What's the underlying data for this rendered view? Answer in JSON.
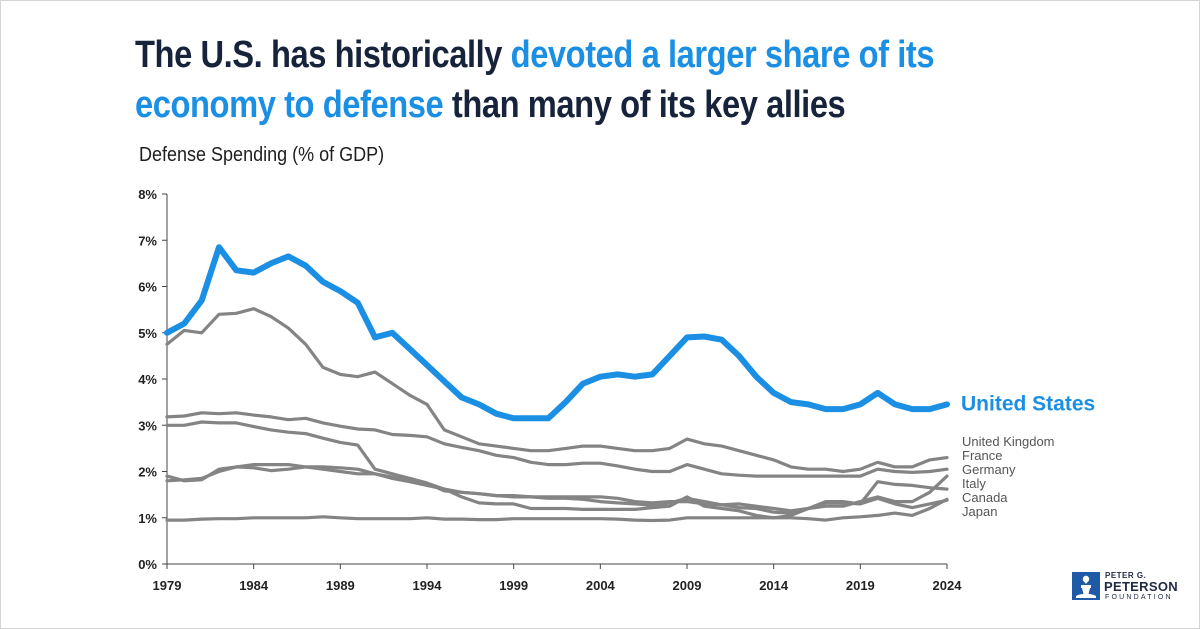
{
  "title": {
    "part1": "The U.S. has historically ",
    "part2": "devoted a larger share of its economy to defense",
    "part3": " than many of its key allies"
  },
  "colors": {
    "us": "#1a8fe3",
    "allies": "#848484",
    "axis": "#444444",
    "title": "#17233b"
  },
  "logo": {
    "line1": "PETER G.",
    "line2": "PETERSON",
    "line3": "FOUNDATION",
    "icon": "torch-icon"
  },
  "chart_data": {
    "type": "line",
    "subtitle": "Defense Spending (% of GDP)",
    "xlabel": "",
    "ylabel": "",
    "x_range": [
      1979,
      2024
    ],
    "ylim": [
      0,
      8
    ],
    "x_ticks": [
      "1979",
      "1984",
      "1989",
      "1994",
      "1999",
      "2004",
      "2009",
      "2014",
      "2019",
      "2024"
    ],
    "y_ticks": [
      "0%",
      "1%",
      "2%",
      "3%",
      "4%",
      "5%",
      "6%",
      "7%",
      "8%"
    ],
    "grid": false,
    "legend": "direct labels at right end of lines",
    "x": [
      1979,
      1980,
      1981,
      1982,
      1983,
      1984,
      1985,
      1986,
      1987,
      1988,
      1989,
      1990,
      1991,
      1992,
      1993,
      1994,
      1995,
      1996,
      1997,
      1998,
      1999,
      2000,
      2001,
      2002,
      2003,
      2004,
      2005,
      2006,
      2007,
      2008,
      2009,
      2010,
      2011,
      2012,
      2013,
      2014,
      2015,
      2016,
      2017,
      2018,
      2019,
      2020,
      2021,
      2022,
      2023,
      2024
    ],
    "series": [
      {
        "name": "United States",
        "values": [
          5.0,
          5.2,
          5.7,
          6.85,
          6.35,
          6.3,
          6.5,
          6.65,
          6.45,
          6.1,
          5.9,
          5.65,
          4.9,
          5.0,
          4.65,
          4.3,
          3.95,
          3.6,
          3.45,
          3.25,
          3.15,
          3.15,
          3.15,
          3.5,
          3.9,
          4.05,
          4.1,
          4.05,
          4.1,
          4.5,
          4.9,
          4.92,
          4.85,
          4.5,
          4.05,
          3.7,
          3.5,
          3.45,
          3.35,
          3.35,
          3.45,
          3.7,
          3.45,
          3.35,
          3.35,
          3.45
        ]
      },
      {
        "name": "United Kingdom",
        "values": [
          4.75,
          5.05,
          5.0,
          5.4,
          5.42,
          5.52,
          5.35,
          5.1,
          4.75,
          4.25,
          4.1,
          4.05,
          4.15,
          3.9,
          3.65,
          3.45,
          2.9,
          2.75,
          2.6,
          2.55,
          2.5,
          2.45,
          2.45,
          2.5,
          2.55,
          2.55,
          2.5,
          2.45,
          2.45,
          2.5,
          2.7,
          2.6,
          2.55,
          2.45,
          2.35,
          2.25,
          2.1,
          2.05,
          2.05,
          2.0,
          2.05,
          2.2,
          2.1,
          2.1,
          2.25,
          2.3
        ]
      },
      {
        "name": "France",
        "values": [
          3.18,
          3.2,
          3.27,
          3.25,
          3.27,
          3.22,
          3.18,
          3.12,
          3.15,
          3.05,
          2.98,
          2.92,
          2.9,
          2.8,
          2.78,
          2.75,
          2.6,
          2.52,
          2.45,
          2.35,
          2.3,
          2.2,
          2.15,
          2.15,
          2.18,
          2.18,
          2.12,
          2.05,
          2.0,
          2.0,
          2.15,
          2.05,
          1.95,
          1.92,
          1.9,
          1.9,
          1.9,
          1.9,
          1.9,
          1.9,
          1.9,
          2.05,
          2.0,
          1.98,
          2.0,
          2.05
        ]
      },
      {
        "name": "Germany",
        "values": [
          3.0,
          3.0,
          3.07,
          3.05,
          3.05,
          2.97,
          2.9,
          2.85,
          2.82,
          2.72,
          2.63,
          2.57,
          2.05,
          1.95,
          1.85,
          1.75,
          1.62,
          1.55,
          1.52,
          1.48,
          1.48,
          1.45,
          1.42,
          1.42,
          1.4,
          1.35,
          1.32,
          1.3,
          1.27,
          1.32,
          1.42,
          1.35,
          1.28,
          1.3,
          1.25,
          1.2,
          1.15,
          1.2,
          1.25,
          1.25,
          1.35,
          1.45,
          1.35,
          1.35,
          1.55,
          1.9
        ]
      },
      {
        "name": "Italy",
        "values": [
          1.9,
          1.8,
          1.82,
          2.05,
          2.1,
          2.08,
          2.02,
          2.05,
          2.1,
          2.1,
          2.08,
          2.05,
          1.95,
          1.88,
          1.85,
          1.75,
          1.58,
          1.55,
          1.52,
          1.48,
          1.45,
          1.45,
          1.45,
          1.45,
          1.45,
          1.45,
          1.42,
          1.35,
          1.32,
          1.35,
          1.35,
          1.3,
          1.28,
          1.22,
          1.2,
          1.12,
          1.1,
          1.2,
          1.32,
          1.32,
          1.3,
          1.78,
          1.72,
          1.7,
          1.65,
          1.62
        ]
      },
      {
        "name": "Canada",
        "values": [
          1.8,
          1.82,
          1.85,
          2.0,
          2.1,
          2.15,
          2.15,
          2.15,
          2.1,
          2.05,
          2.0,
          1.95,
          1.95,
          1.85,
          1.78,
          1.7,
          1.62,
          1.45,
          1.32,
          1.3,
          1.3,
          1.2,
          1.2,
          1.2,
          1.18,
          1.18,
          1.18,
          1.18,
          1.22,
          1.25,
          1.45,
          1.25,
          1.2,
          1.15,
          1.05,
          1.0,
          1.05,
          1.2,
          1.35,
          1.35,
          1.3,
          1.42,
          1.3,
          1.22,
          1.3,
          1.38
        ]
      },
      {
        "name": "Japan",
        "values": [
          0.95,
          0.95,
          0.97,
          0.98,
          0.98,
          1.0,
          1.0,
          1.0,
          1.0,
          1.02,
          1.0,
          0.98,
          0.98,
          0.98,
          0.98,
          1.0,
          0.97,
          0.97,
          0.96,
          0.96,
          0.98,
          0.98,
          0.98,
          0.98,
          0.98,
          0.98,
          0.97,
          0.95,
          0.94,
          0.95,
          1.0,
          1.0,
          1.0,
          1.0,
          1.0,
          1.0,
          1.0,
          0.98,
          0.95,
          1.0,
          1.02,
          1.05,
          1.1,
          1.05,
          1.2,
          1.4
        ]
      }
    ]
  }
}
